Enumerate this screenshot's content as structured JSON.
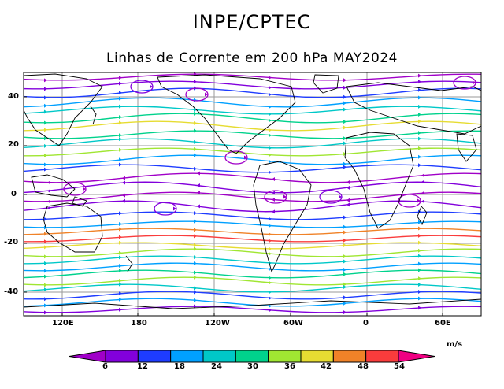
{
  "header": {
    "org": "INPE/CPTEC",
    "title": "Linhas de Corrente em 200 hPa MAY2024"
  },
  "map": {
    "projection": "cylindrical",
    "lat_ticks": [
      "40",
      "20",
      "0",
      "-20",
      "-40"
    ],
    "lon_ticks": [
      "120E",
      "180",
      "120W",
      "60W",
      "0",
      "60E"
    ],
    "field": "streamlines 200 hPa",
    "colors_by_speed": true
  },
  "colorbar": {
    "units": "m/s",
    "labels": [
      "6",
      "12",
      "18",
      "24",
      "30",
      "36",
      "42",
      "48",
      "54"
    ],
    "colors": [
      "#a000c8",
      "#8200dc",
      "#1e3cff",
      "#00a0ff",
      "#00c8c8",
      "#00d28c",
      "#a0e632",
      "#e6dc32",
      "#f08228",
      "#fa3c3c",
      "#f00082"
    ]
  }
}
